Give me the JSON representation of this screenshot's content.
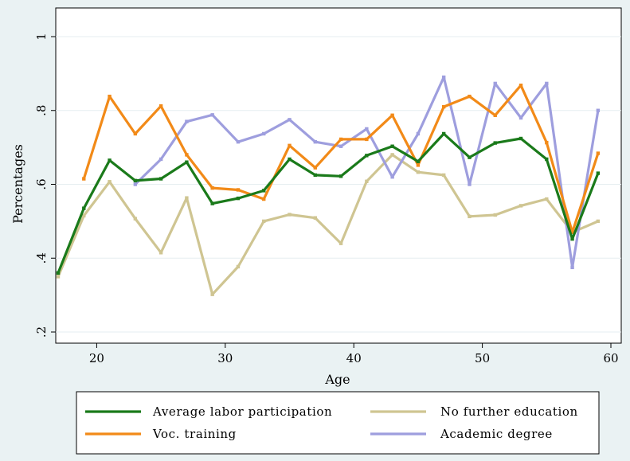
{
  "chart_data": {
    "type": "line",
    "title": "",
    "xlabel": "Age",
    "ylabel": "Percentages",
    "xlim": [
      17,
      60
    ],
    "ylim": [
      0.2,
      1
    ],
    "xticks": [
      20,
      30,
      40,
      50,
      60
    ],
    "yticks": [
      0.2,
      0.4,
      0.6,
      0.8,
      1
    ],
    "ytick_labels": [
      ".2",
      ".4",
      ".6",
      ".8",
      "1"
    ],
    "grid": "horizontal",
    "legend_position": "bottom",
    "series": [
      {
        "name": "Average labor participation",
        "color": "#1a7a1a",
        "x": [
          17,
          19,
          21,
          23,
          25,
          27,
          29,
          31,
          33,
          35,
          37,
          39,
          41,
          43,
          45,
          47,
          49,
          51,
          53,
          55,
          57,
          59
        ],
        "y": [
          0.36,
          0.535,
          0.665,
          0.61,
          0.615,
          0.66,
          0.548,
          0.562,
          0.583,
          0.668,
          0.625,
          0.622,
          0.678,
          0.703,
          0.662,
          0.737,
          0.673,
          0.712,
          0.724,
          0.668,
          0.452,
          0.63
        ]
      },
      {
        "name": "No further education",
        "color": "#cfc592",
        "x": [
          17,
          19,
          21,
          23,
          25,
          27,
          29,
          31,
          33,
          35,
          37,
          39,
          41,
          43,
          45,
          47,
          49,
          51,
          53,
          55,
          57,
          59
        ],
        "y": [
          0.35,
          0.515,
          0.607,
          0.507,
          0.415,
          0.563,
          0.302,
          0.377,
          0.5,
          0.518,
          0.509,
          0.44,
          0.608,
          0.68,
          0.633,
          0.625,
          0.513,
          0.517,
          0.542,
          0.56,
          0.47,
          0.5
        ]
      },
      {
        "name": "Voc. training",
        "color": "#f28a18",
        "x": [
          19,
          21,
          23,
          25,
          27,
          29,
          31,
          33,
          35,
          37,
          39,
          41,
          43,
          45,
          47,
          49,
          51,
          53,
          55,
          57,
          59
        ],
        "y": [
          0.615,
          0.838,
          0.737,
          0.812,
          0.68,
          0.59,
          0.585,
          0.56,
          0.705,
          0.645,
          0.722,
          0.722,
          0.787,
          0.652,
          0.81,
          0.838,
          0.787,
          0.868,
          0.713,
          0.47,
          0.684
        ]
      },
      {
        "name": "Academic degree",
        "color": "#9e9ede",
        "x": [
          23,
          25,
          27,
          29,
          31,
          33,
          35,
          37,
          39,
          41,
          43,
          45,
          47,
          49,
          51,
          53,
          55,
          57,
          59
        ],
        "y": [
          0.6,
          0.668,
          0.77,
          0.788,
          0.715,
          0.737,
          0.775,
          0.715,
          0.703,
          0.75,
          0.62,
          0.737,
          0.89,
          0.6,
          0.873,
          0.78,
          0.873,
          0.375,
          0.8
        ]
      }
    ]
  }
}
